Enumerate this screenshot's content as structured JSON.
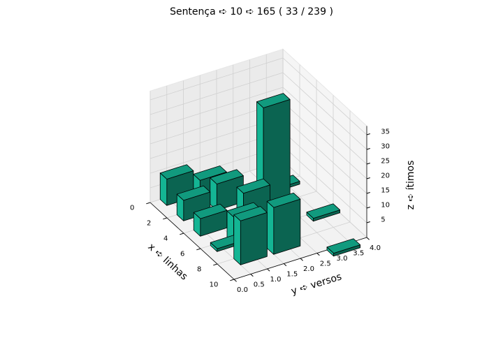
{
  "chart_data": {
    "type": "bar3d",
    "title": "Sentença ➪ 10 ➪ 165 ( 33 / 239 )",
    "xlabel": "x ➪ linhas",
    "ylabel": "y ➪ versos",
    "zlabel": "z ➪ ítimos",
    "x": [
      0,
      2,
      4,
      0,
      2,
      6,
      8,
      8,
      6,
      4,
      4,
      6,
      2,
      6,
      10
    ],
    "y": [
      0.3,
      0.3,
      0.3,
      1.3,
      1.3,
      0.3,
      0.5,
      1.5,
      0.8,
      2.2,
      1.6,
      1.8,
      3.0,
      3.2,
      2.8
    ],
    "values": [
      9,
      7,
      6,
      5,
      9,
      1,
      15,
      16,
      10,
      37,
      10,
      3,
      1,
      1,
      1
    ],
    "color": "#14b594",
    "xlim": [
      0,
      10
    ],
    "ylim": [
      0,
      4
    ],
    "zlim": [
      0,
      38
    ],
    "xticks": [
      0,
      2,
      4,
      6,
      8,
      10
    ],
    "yticks": [
      {
        "value": 0,
        "label": "0.0"
      },
      0.5,
      {
        "value": 1,
        "label": "1.0"
      },
      1.5,
      {
        "value": 2,
        "label": "2.0"
      },
      2.5,
      {
        "value": 3,
        "label": "3.0"
      },
      3.5,
      {
        "value": 4,
        "label": "4.0"
      }
    ],
    "zticks": [
      5,
      10,
      15,
      20,
      25,
      30,
      35
    ],
    "grid": true
  }
}
